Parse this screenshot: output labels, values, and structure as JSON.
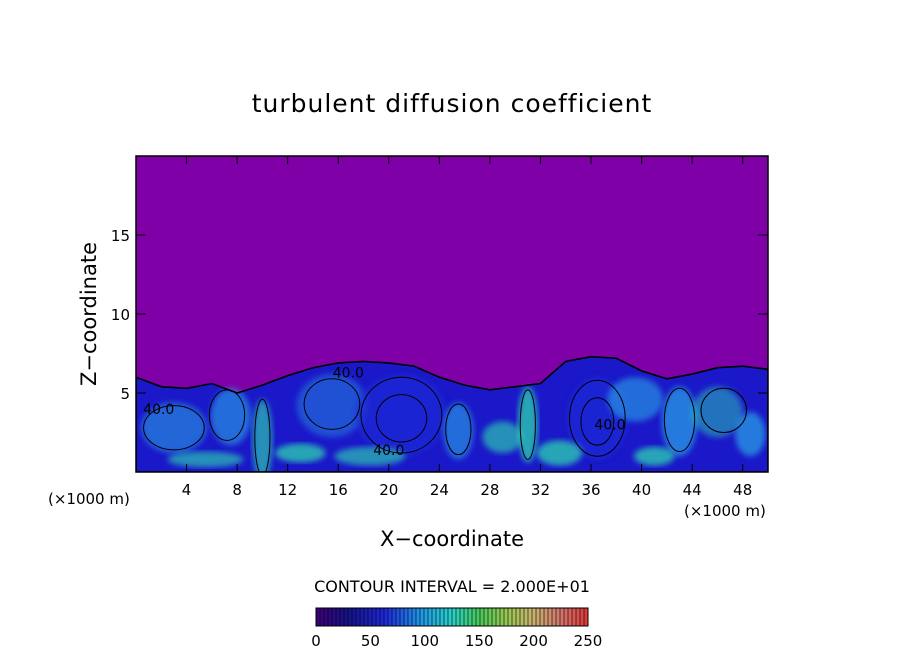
{
  "chart_data": {
    "type": "heatmap",
    "title": "turbulent diffusion coefficient",
    "xlabel": "X−coordinate",
    "ylabel": "Z−coordinate",
    "x_unit_left": "(×1000 m)",
    "x_unit_right": "(×1000 m)",
    "xlim": [
      0,
      50
    ],
    "ylim": [
      0,
      20
    ],
    "x_ticks": [
      4,
      8,
      12,
      16,
      20,
      24,
      28,
      32,
      36,
      40,
      44,
      48
    ],
    "y_ticks": [
      5,
      10,
      15
    ],
    "field_top_profile": [
      [
        0,
        6.0
      ],
      [
        2,
        5.4
      ],
      [
        4,
        5.3
      ],
      [
        6,
        5.6
      ],
      [
        8,
        5.0
      ],
      [
        10,
        5.5
      ],
      [
        12,
        6.1
      ],
      [
        14,
        6.6
      ],
      [
        16,
        6.9
      ],
      [
        18,
        7.0
      ],
      [
        20,
        6.9
      ],
      [
        22,
        6.7
      ],
      [
        24,
        6.0
      ],
      [
        26,
        5.5
      ],
      [
        28,
        5.2
      ],
      [
        30,
        5.4
      ],
      [
        32,
        5.6
      ],
      [
        34,
        7.0
      ],
      [
        36,
        7.3
      ],
      [
        38,
        7.2
      ],
      [
        40,
        6.4
      ],
      [
        42,
        5.9
      ],
      [
        44,
        6.2
      ],
      [
        46,
        6.6
      ],
      [
        48,
        6.7
      ],
      [
        50,
        6.5
      ]
    ],
    "contour_labels": [
      {
        "text": "40.0",
        "x": 16.8,
        "y": 6.3
      },
      {
        "text": "40.0",
        "x": 1.8,
        "y": 4.0
      },
      {
        "text": "40.0",
        "x": 20.0,
        "y": 1.4
      },
      {
        "text": "40.0",
        "x": 37.5,
        "y": 3.0
      }
    ],
    "contour_interval_text": "CONTOUR INTERVAL = 2.000E+01",
    "colorbar": {
      "min": 0,
      "max": 250,
      "ticks": [
        0,
        50,
        100,
        150,
        200,
        250
      ]
    },
    "colors": {
      "background": "#7e00a6",
      "low": "#1a18c8",
      "mid": "#2aa6e6",
      "high": "#2ee0b0",
      "contour": "#000000"
    }
  }
}
